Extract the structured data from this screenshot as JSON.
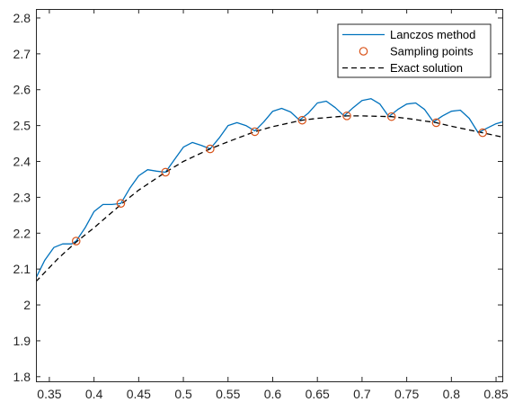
{
  "chart_data": {
    "type": "line",
    "title": "",
    "xlabel": "",
    "ylabel": "",
    "xlim": [
      0.335,
      0.857
    ],
    "ylim": [
      1.787,
      2.825
    ],
    "xticks": [
      0.35,
      0.4,
      0.45,
      0.5,
      0.55,
      0.6,
      0.65,
      0.7,
      0.75,
      0.8,
      0.85
    ],
    "xtick_labels": [
      "0.35",
      "0.4",
      "0.45",
      "0.5",
      "0.55",
      "0.6",
      "0.65",
      "0.7",
      "0.75",
      "0.8",
      "0.85"
    ],
    "yticks": [
      1.8,
      1.9,
      2.0,
      2.1,
      2.2,
      2.3,
      2.4,
      2.5,
      2.6,
      2.7,
      2.8
    ],
    "ytick_labels": [
      "1.8",
      "1.9",
      "2",
      "2.1",
      "2.2",
      "2.3",
      "2.4",
      "2.5",
      "2.6",
      "2.7",
      "2.8"
    ],
    "grid": false,
    "legend_position": "top-right",
    "colors": {
      "lanczos": "#0072BD",
      "sampling": "#D95319",
      "exact": "#000000",
      "axes": "#262626"
    },
    "series": [
      {
        "name": "Lanczos method",
        "style": "solid",
        "x": [
          0.335,
          0.345,
          0.355,
          0.365,
          0.375,
          0.38,
          0.39,
          0.4,
          0.41,
          0.42,
          0.43,
          0.44,
          0.45,
          0.46,
          0.47,
          0.48,
          0.49,
          0.5,
          0.51,
          0.52,
          0.53,
          0.54,
          0.55,
          0.56,
          0.57,
          0.58,
          0.59,
          0.6,
          0.61,
          0.62,
          0.63,
          0.64,
          0.65,
          0.66,
          0.67,
          0.68,
          0.69,
          0.7,
          0.71,
          0.72,
          0.73,
          0.74,
          0.75,
          0.76,
          0.77,
          0.78,
          0.79,
          0.8,
          0.81,
          0.82,
          0.83,
          0.84,
          0.85,
          0.857
        ],
        "y": [
          2.075,
          2.125,
          2.16,
          2.17,
          2.17,
          2.178,
          2.215,
          2.26,
          2.28,
          2.28,
          2.283,
          2.325,
          2.36,
          2.377,
          2.373,
          2.37,
          2.405,
          2.44,
          2.453,
          2.445,
          2.435,
          2.465,
          2.5,
          2.508,
          2.5,
          2.485,
          2.51,
          2.54,
          2.548,
          2.538,
          2.515,
          2.535,
          2.563,
          2.568,
          2.55,
          2.527,
          2.55,
          2.57,
          2.575,
          2.56,
          2.525,
          2.545,
          2.56,
          2.563,
          2.545,
          2.51,
          2.527,
          2.54,
          2.543,
          2.52,
          2.48,
          2.493,
          2.505,
          2.51
        ]
      },
      {
        "name": "Sampling points",
        "style": "markers",
        "x": [
          0.38,
          0.43,
          0.48,
          0.53,
          0.58,
          0.633,
          0.683,
          0.733,
          0.783,
          0.835
        ],
        "y": [
          2.178,
          2.283,
          2.37,
          2.435,
          2.483,
          2.515,
          2.527,
          2.525,
          2.508,
          2.48
        ]
      },
      {
        "name": "Exact solution",
        "style": "dashed",
        "x": [
          0.335,
          0.36,
          0.38,
          0.4,
          0.43,
          0.45,
          0.48,
          0.5,
          0.53,
          0.55,
          0.58,
          0.6,
          0.633,
          0.65,
          0.683,
          0.7,
          0.733,
          0.75,
          0.783,
          0.8,
          0.835,
          0.857
        ],
        "y": [
          2.065,
          2.13,
          2.175,
          2.215,
          2.28,
          2.32,
          2.37,
          2.4,
          2.435,
          2.455,
          2.483,
          2.497,
          2.515,
          2.52,
          2.527,
          2.527,
          2.525,
          2.52,
          2.508,
          2.498,
          2.48,
          2.468
        ]
      }
    ]
  }
}
